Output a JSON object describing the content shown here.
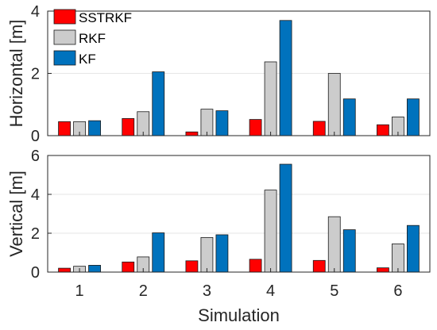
{
  "chart_data": [
    {
      "type": "bar",
      "ylabel": "Horizontal [m]",
      "xlabel": "",
      "categories": [
        "1",
        "2",
        "3",
        "4",
        "5",
        "6"
      ],
      "ylim": [
        0,
        4
      ],
      "yticks": [
        "0",
        "2",
        "4"
      ],
      "grid": "horizontal",
      "legend_position": "top-left",
      "series": [
        {
          "name": "SSTRKF",
          "color": "#ff0000",
          "values": [
            0.45,
            0.55,
            0.12,
            0.52,
            0.46,
            0.35
          ]
        },
        {
          "name": "RKF",
          "color": "#cccccc",
          "values": [
            0.45,
            0.77,
            0.85,
            2.37,
            2.0,
            0.6
          ]
        },
        {
          "name": "KF",
          "color": "#0072bd",
          "values": [
            0.48,
            2.05,
            0.8,
            3.7,
            1.18,
            1.18
          ]
        }
      ]
    },
    {
      "type": "bar",
      "ylabel": "Vertical [m]",
      "xlabel": "Simulation",
      "categories": [
        "1",
        "2",
        "3",
        "4",
        "5",
        "6"
      ],
      "ylim": [
        0,
        6
      ],
      "yticks": [
        "0",
        "2",
        "4",
        "6"
      ],
      "grid": "horizontal",
      "series": [
        {
          "name": "SSTRKF",
          "color": "#ff0000",
          "values": [
            0.2,
            0.52,
            0.58,
            0.66,
            0.6,
            0.22
          ]
        },
        {
          "name": "RKF",
          "color": "#cccccc",
          "values": [
            0.3,
            0.78,
            1.78,
            4.22,
            2.85,
            1.45
          ]
        },
        {
          "name": "KF",
          "color": "#0072bd",
          "values": [
            0.35,
            2.02,
            1.92,
            5.55,
            2.18,
            2.4
          ]
        }
      ]
    }
  ]
}
